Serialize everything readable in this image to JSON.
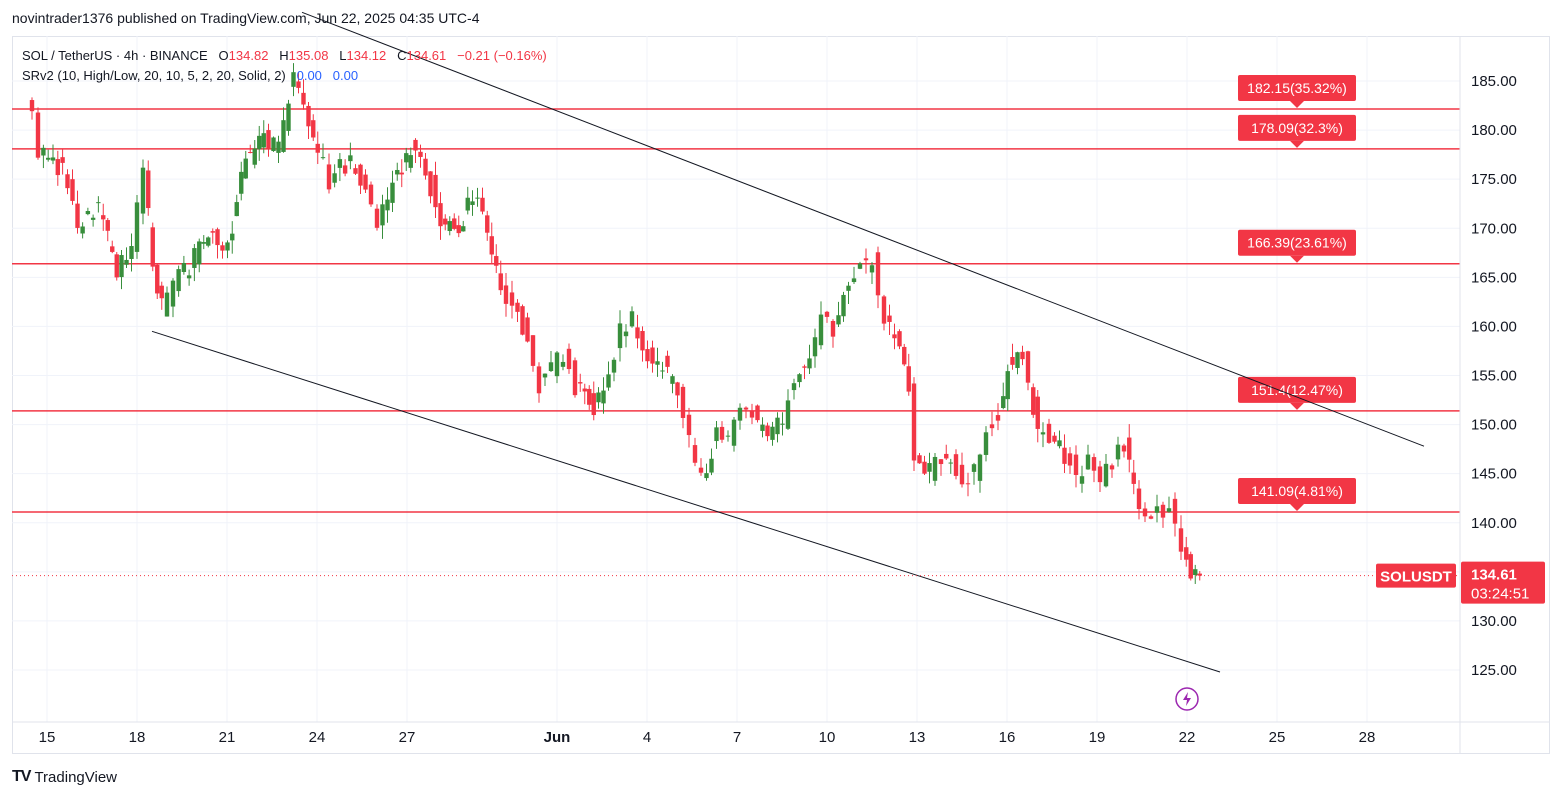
{
  "header": {
    "published_by": "novintrader1376 published on TradingView.com, Jun 22, 2025 04:35 UTC-4"
  },
  "legend": {
    "symbol": "SOL / TetherUS · 4h · BINANCE",
    "o_label": "O",
    "o_value": "134.82",
    "h_label": "H",
    "h_value": "135.08",
    "l_label": "L",
    "l_value": "134.12",
    "c_label": "C",
    "c_value": "134.61",
    "change": "−0.21 (−0.16%)",
    "indicator": "SRv2 (10, High/Low, 20, 10, 5, 2, 20, Solid, 2)",
    "ind_value_1": "0.00",
    "ind_value_2": "0.00"
  },
  "price_badge": {
    "symbol": "SOLUSDT",
    "price": "134.61",
    "countdown": "03:24:51"
  },
  "footer": {
    "brand": "TradingView"
  },
  "colors": {
    "up": "#22ab94",
    "up_body": "#388e3c",
    "down": "#f23645",
    "level_line": "#f23645",
    "trendline": "#131722",
    "grid": "#f0f3fa"
  },
  "chart_data": {
    "type": "candlestick",
    "ylim": [
      120,
      188
    ],
    "y_ticks": [
      "185.00",
      "180.00",
      "175.00",
      "170.00",
      "165.00",
      "160.00",
      "155.00",
      "150.00",
      "145.00",
      "140.00",
      "135.00",
      "130.00",
      "125.00"
    ],
    "x_ticks": [
      {
        "day": 15,
        "label": "15"
      },
      {
        "day": 18,
        "label": "18"
      },
      {
        "day": 21,
        "label": "21"
      },
      {
        "day": 24,
        "label": "24"
      },
      {
        "day": 27,
        "label": "27"
      },
      {
        "day": 32,
        "label": "Jun"
      },
      {
        "day": 35,
        "label": "4"
      },
      {
        "day": 38,
        "label": "7"
      },
      {
        "day": 41,
        "label": "10"
      },
      {
        "day": 44,
        "label": "13"
      },
      {
        "day": 47,
        "label": "16"
      },
      {
        "day": 50,
        "label": "19"
      },
      {
        "day": 53,
        "label": "22"
      },
      {
        "day": 56,
        "label": "25"
      },
      {
        "day": 59,
        "label": "28"
      }
    ],
    "levels": [
      {
        "price": 182.15,
        "label": "182.15(35.32%)"
      },
      {
        "price": 178.09,
        "label": "178.09(32.3%)"
      },
      {
        "price": 166.39,
        "label": "166.39(23.61%)"
      },
      {
        "price": 151.4,
        "label": "151.4(12.47%)"
      },
      {
        "price": 141.09,
        "label": "141.09(4.81%)"
      }
    ],
    "trendlines": [
      {
        "from": [
          23.5,
          192.0
        ],
        "to": [
          60.9,
          147.8
        ]
      },
      {
        "from": [
          18.5,
          159.5
        ],
        "to": [
          54.1,
          124.8
        ]
      }
    ],
    "current_price": 134.61,
    "path": [
      [
        14.4,
        184
      ],
      [
        14.8,
        178
      ],
      [
        15.6,
        176
      ],
      [
        16.1,
        170
      ],
      [
        16.8,
        172
      ],
      [
        17.4,
        166
      ],
      [
        17.9,
        168
      ],
      [
        18.3,
        176
      ],
      [
        18.6,
        166
      ],
      [
        18.9,
        162
      ],
      [
        19.3,
        164
      ],
      [
        20.0,
        167
      ],
      [
        20.6,
        170
      ],
      [
        21.1,
        168
      ],
      [
        21.7,
        177
      ],
      [
        22.3,
        179
      ],
      [
        22.8,
        178
      ],
      [
        23.3,
        186
      ],
      [
        23.8,
        181
      ],
      [
        24.1,
        178
      ],
      [
        24.5,
        175
      ],
      [
        25.2,
        177
      ],
      [
        25.7,
        174
      ],
      [
        26.1,
        171
      ],
      [
        26.6,
        175
      ],
      [
        27.2,
        178
      ],
      [
        27.7,
        176
      ],
      [
        28.2,
        171
      ],
      [
        28.8,
        169
      ],
      [
        29.1,
        173
      ],
      [
        29.6,
        172
      ],
      [
        29.9,
        167
      ],
      [
        30.2,
        164
      ],
      [
        30.6,
        162
      ],
      [
        31.1,
        159
      ],
      [
        31.5,
        154
      ],
      [
        31.9,
        156
      ],
      [
        32.3,
        157
      ],
      [
        32.7,
        154
      ],
      [
        33.3,
        152
      ],
      [
        33.8,
        155
      ],
      [
        34.2,
        160
      ],
      [
        34.6,
        161
      ],
      [
        35.1,
        157
      ],
      [
        35.6,
        156
      ],
      [
        36.1,
        153
      ],
      [
        36.5,
        148
      ],
      [
        36.9,
        144
      ],
      [
        37.4,
        149
      ],
      [
        37.8,
        148
      ],
      [
        38.2,
        152
      ],
      [
        38.6,
        151
      ],
      [
        39.1,
        149
      ],
      [
        39.6,
        150
      ],
      [
        40.0,
        155
      ],
      [
        40.5,
        156
      ],
      [
        40.9,
        161
      ],
      [
        41.3,
        160
      ],
      [
        41.8,
        165
      ],
      [
        42.2,
        166
      ],
      [
        42.6,
        167
      ],
      [
        43.0,
        161
      ],
      [
        43.5,
        158
      ],
      [
        43.8,
        154
      ],
      [
        44.0,
        147
      ],
      [
        44.5,
        145
      ],
      [
        44.9,
        147
      ],
      [
        45.2,
        146
      ],
      [
        45.6,
        144
      ],
      [
        46.0,
        145
      ],
      [
        46.4,
        149
      ],
      [
        46.8,
        151
      ],
      [
        47.1,
        156
      ],
      [
        47.6,
        157
      ],
      [
        47.8,
        154
      ],
      [
        48.1,
        150
      ],
      [
        48.5,
        148
      ],
      [
        49.0,
        147
      ],
      [
        49.4,
        145
      ],
      [
        49.8,
        146
      ],
      [
        50.2,
        144
      ],
      [
        50.6,
        146
      ],
      [
        51.0,
        148
      ],
      [
        51.3,
        143
      ],
      [
        51.7,
        141
      ],
      [
        52.1,
        141
      ],
      [
        52.5,
        141.5
      ],
      [
        52.9,
        138
      ],
      [
        53.2,
        135
      ],
      [
        53.5,
        134.6
      ]
    ]
  }
}
